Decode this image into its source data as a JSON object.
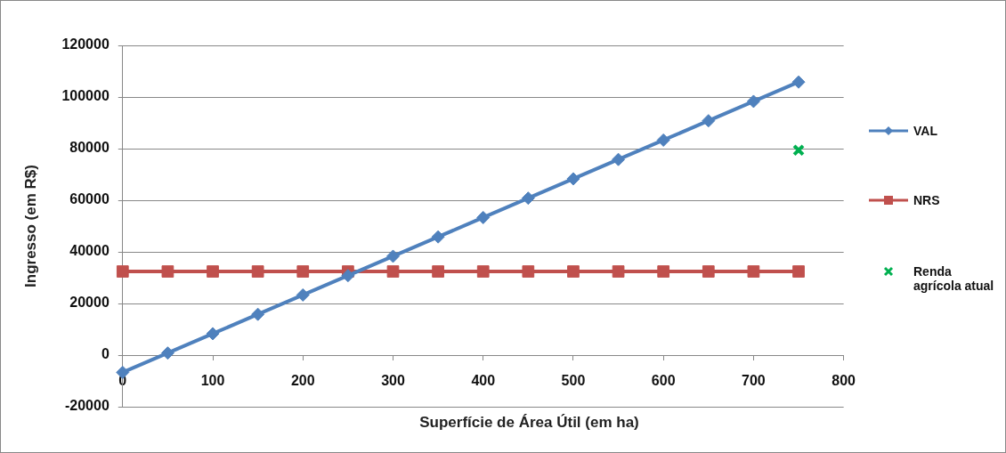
{
  "chart_data": {
    "type": "line",
    "xlabel": "Superfície de Área Útil (em ha)",
    "ylabel": "Ingresso (em R$)",
    "x": [
      0,
      50,
      100,
      150,
      200,
      250,
      300,
      350,
      400,
      450,
      500,
      550,
      600,
      650,
      700,
      750
    ],
    "series": [
      {
        "name": "VAL",
        "type": "line",
        "marker": "diamond",
        "color": "#4f81bd",
        "values": [
          -6700,
          800,
          8300,
          15800,
          23300,
          30800,
          38300,
          45800,
          53300,
          60800,
          68300,
          75800,
          83300,
          90800,
          98300,
          105800
        ]
      },
      {
        "name": "NRS",
        "type": "line",
        "marker": "square",
        "color": "#c0504d",
        "values": [
          32400,
          32400,
          32400,
          32400,
          32400,
          32400,
          32400,
          32400,
          32400,
          32400,
          32400,
          32400,
          32400,
          32400,
          32400,
          32400
        ]
      },
      {
        "name": "Renda agrícola atual",
        "type": "scatter",
        "marker": "cross",
        "color": "#00b050",
        "x": [
          750
        ],
        "values": [
          79400
        ]
      }
    ],
    "xlim": [
      0,
      800
    ],
    "xticks": [
      0,
      100,
      200,
      300,
      400,
      500,
      600,
      700,
      800
    ],
    "ylim": [
      -20000,
      120000
    ],
    "yticks": [
      -20000,
      0,
      20000,
      40000,
      60000,
      80000,
      100000,
      120000
    ],
    "grid": "y",
    "legend": "right"
  }
}
